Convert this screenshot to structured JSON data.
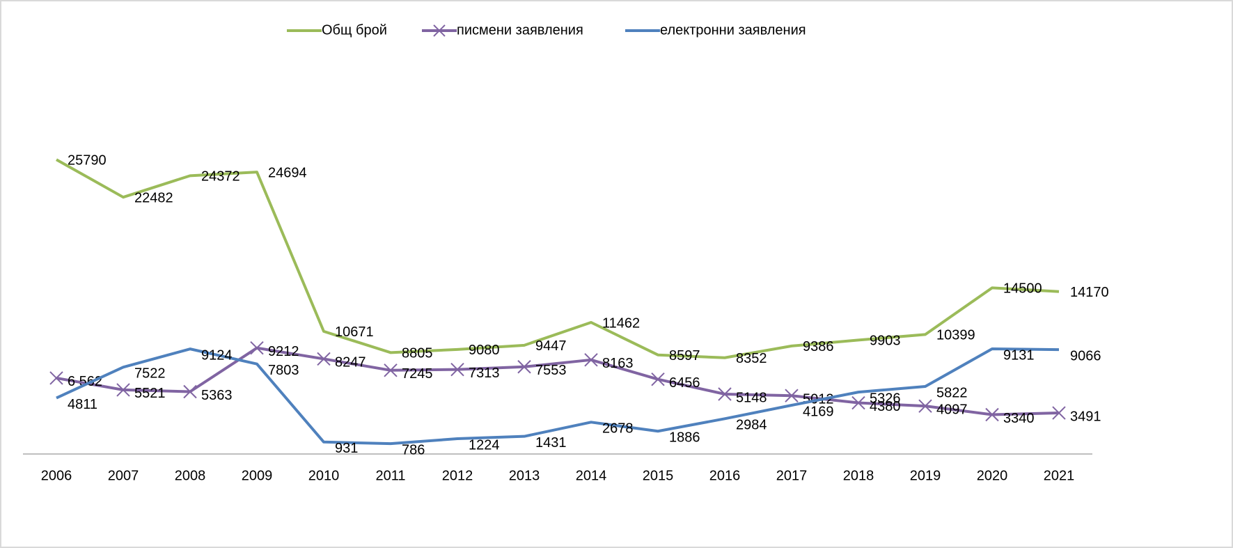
{
  "chart_data": {
    "type": "line",
    "categories": [
      "2006",
      "2007",
      "2008",
      "2009",
      "2010",
      "2011",
      "2012",
      "2013",
      "2014",
      "2015",
      "2016",
      "2017",
      "2018",
      "2019",
      "2020",
      "2021"
    ],
    "ylim": [
      0,
      38000
    ],
    "legend": "top",
    "series": [
      {
        "name": "Общ брой",
        "color": "#9bbb59",
        "marker": "none",
        "values": [
          25790,
          22482,
          24372,
          24694,
          10671,
          8805,
          9080,
          9447,
          11462,
          8597,
          8352,
          9386,
          9903,
          10399,
          14500,
          14170
        ]
      },
      {
        "name": "писмени заявления",
        "color": "#8064a2",
        "marker": "x",
        "values": [
          6562,
          5521,
          5363,
          9212,
          8247,
          7245,
          7313,
          7553,
          8163,
          6456,
          5148,
          5012,
          4380,
          4097,
          3340,
          3491
        ],
        "value_labels": [
          "6 562",
          "5521",
          "5363",
          "9212",
          "8247",
          "7245",
          "7313",
          "7553",
          "8163",
          "6456",
          "5148",
          "5012",
          "4380",
          "4097",
          "3340",
          "3491"
        ]
      },
      {
        "name": "електронни заявления",
        "color": "#4f81bd",
        "marker": "none",
        "values": [
          4811,
          7522,
          9124,
          7803,
          931,
          786,
          1224,
          1431,
          2678,
          1886,
          2984,
          4169,
          5326,
          5822,
          9131,
          9066
        ]
      }
    ]
  }
}
